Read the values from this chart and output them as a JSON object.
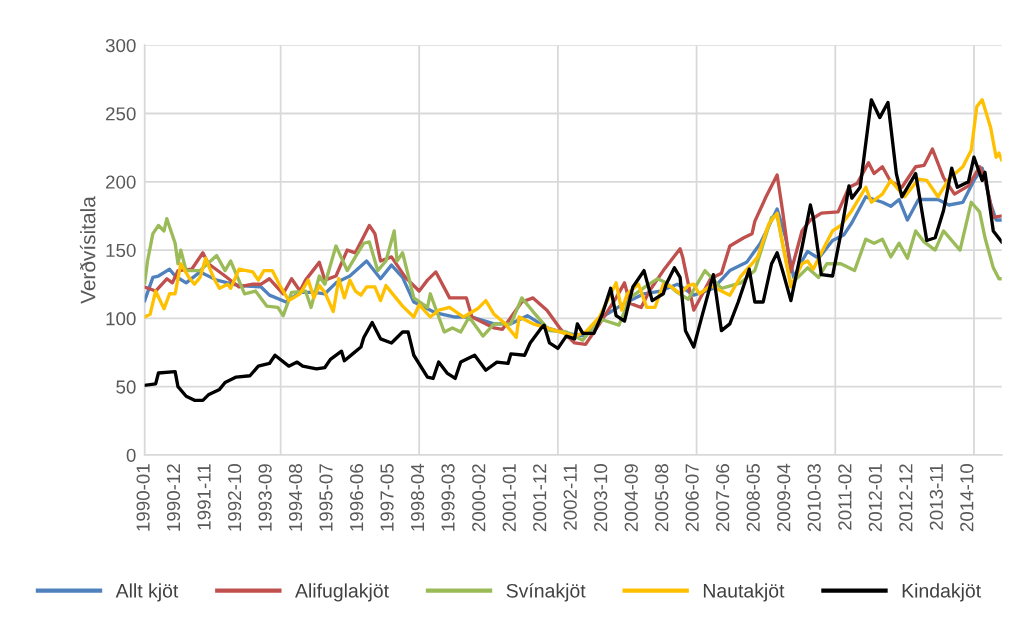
{
  "chart_data": {
    "type": "line",
    "ylabel": "Verðvísitala",
    "xlim": [
      "1990-01",
      "2015-10"
    ],
    "xticks": [
      "1990-01",
      "1990-12",
      "1991-11",
      "1992-10",
      "1993-09",
      "1994-08",
      "1995-07",
      "1996-06",
      "1997-05",
      "1998-04",
      "1999-03",
      "2000-02",
      "2001-01",
      "2001-12",
      "2002-11",
      "2003-10",
      "2004-09",
      "2005-08",
      "2006-07",
      "2007-06",
      "2008-05",
      "2009-04",
      "2010-03",
      "2011-02",
      "2012-01",
      "2012-12",
      "2013-11",
      "2014-10"
    ],
    "ylim": [
      0,
      300
    ],
    "yticks": [
      0,
      50,
      100,
      150,
      200,
      250,
      300
    ],
    "grid": "y",
    "legend": "bottom",
    "marker": "none",
    "line_style": "solid",
    "ref_lines": [
      {
        "axis": "x",
        "value": "1994-02",
        "label": null,
        "color": "#d9d9d9"
      },
      {
        "axis": "x",
        "value": "1998-04",
        "label": null,
        "color": "#d9d9d9"
      },
      {
        "axis": "x",
        "value": "2002-06",
        "label": null,
        "color": "#d9d9d9"
      },
      {
        "axis": "x",
        "value": "2006-08",
        "label": null,
        "color": "#d9d9d9"
      },
      {
        "axis": "x",
        "value": "2010-10",
        "label": null,
        "color": "#d9d9d9"
      },
      {
        "axis": "x",
        "value": "2014-12",
        "label": null,
        "color": "#d9d9d9"
      }
    ],
    "series": [
      {
        "name": "Allt kjöt",
        "color": "#4f81bd",
        "x": [
          "1990-01",
          "1990-04",
          "1990-06",
          "1990-10",
          "1990-12",
          "1991-04",
          "1991-09",
          "1992-03",
          "1992-11",
          "1993-07",
          "1993-10",
          "1994-04",
          "1994-09",
          "1995-02",
          "1995-06",
          "1995-10",
          "1996-03",
          "1996-09",
          "1997-02",
          "1997-06",
          "1997-10",
          "1998-02",
          "1998-07",
          "1998-10",
          "1999-05",
          "1999-11",
          "2000-07",
          "2001-01",
          "2001-07",
          "2002-02",
          "2002-09",
          "2003-04",
          "2003-10",
          "2004-06",
          "2005-01",
          "2005-07",
          "2006-01",
          "2006-07",
          "2007-02",
          "2007-08",
          "2008-02",
          "2008-07",
          "2009-01",
          "2009-04",
          "2009-07",
          "2009-10",
          "2009-12",
          "2010-04",
          "2010-09",
          "2011-01",
          "2011-04",
          "2011-09",
          "2012-03",
          "2012-06",
          "2012-09",
          "2012-12",
          "2013-04",
          "2013-11",
          "2014-03",
          "2014-08",
          "2014-12",
          "2015-03",
          "2015-06",
          "2015-08",
          "2015-10"
        ],
        "values": [
          113,
          130,
          131,
          136,
          131,
          126,
          134,
          128,
          124,
          123,
          117,
          112,
          119,
          119,
          118,
          126,
          131,
          142,
          129,
          139,
          130,
          112,
          107,
          104,
          101,
          101,
          96,
          96,
          102,
          93,
          89,
          87,
          101,
          111,
          118,
          120,
          125,
          117,
          122,
          135,
          141,
          155,
          180,
          160,
          130,
          142,
          149,
          144,
          157,
          161,
          170,
          189,
          185,
          182,
          187,
          172,
          187,
          187,
          183,
          185,
          201,
          210,
          184,
          172,
          172
        ]
      },
      {
        "name": "Alifuglakjöt",
        "color": "#c0504d",
        "x": [
          "1990-01",
          "1990-05",
          "1990-09",
          "1990-11",
          "1991-01",
          "1991-06",
          "1991-10",
          "1991-12",
          "1992-06",
          "1992-11",
          "1993-04",
          "1993-07",
          "1993-10",
          "1994-03",
          "1994-06",
          "1994-09",
          "1994-11",
          "1995-04",
          "1995-06",
          "1995-10",
          "1996-02",
          "1996-05",
          "1996-10",
          "1996-12",
          "1997-02",
          "1997-06",
          "1997-11",
          "1998-04",
          "1998-07",
          "1998-10",
          "1999-03",
          "1999-09",
          "1999-11",
          "2000-07",
          "2000-10",
          "2001-05",
          "2001-09",
          "2002-02",
          "2002-07",
          "2002-12",
          "2003-04",
          "2003-09",
          "2004-03",
          "2004-06",
          "2004-08",
          "2004-12",
          "2005-03",
          "2005-08",
          "2006-02",
          "2006-03",
          "2006-07",
          "2007-01",
          "2007-05",
          "2007-08",
          "2008-01",
          "2008-04",
          "2008-05",
          "2008-09",
          "2009-01",
          "2009-03",
          "2009-06",
          "2009-10",
          "2010-01",
          "2010-05",
          "2010-11",
          "2011-03",
          "2011-06",
          "2011-10",
          "2011-12",
          "2012-03",
          "2012-06",
          "2012-10",
          "2013-03",
          "2013-06",
          "2013-09",
          "2014-01",
          "2014-05",
          "2014-10",
          "2015-02",
          "2015-04",
          "2015-07",
          "2015-10"
        ],
        "values": [
          123,
          120,
          129,
          126,
          135,
          136,
          148,
          140,
          131,
          123,
          125,
          125,
          129,
          118,
          129,
          120,
          128,
          141,
          128,
          131,
          150,
          148,
          168,
          162,
          142,
          145,
          130,
          120,
          128,
          134,
          115,
          115,
          101,
          93,
          92,
          112,
          115,
          106,
          92,
          82,
          81,
          96,
          115,
          126,
          111,
          108,
          120,
          135,
          151,
          145,
          106,
          129,
          133,
          153,
          159,
          162,
          171,
          189,
          205,
          179,
          134,
          164,
          172,
          177,
          178,
          196,
          199,
          214,
          206,
          211,
          200,
          196,
          211,
          212,
          224,
          203,
          191,
          197,
          211,
          203,
          174,
          175
        ]
      },
      {
        "name": "Svínakjöt",
        "color": "#9bbb59",
        "x": [
          "1990-01",
          "1990-02",
          "1990-04",
          "1990-06",
          "1990-08",
          "1990-09",
          "1990-12",
          "1991-01",
          "1991-02",
          "1991-04",
          "1991-09",
          "1992-03",
          "1992-06",
          "1992-08",
          "1993-01",
          "1993-05",
          "1993-09",
          "1994-01",
          "1994-03",
          "1994-06",
          "1994-11",
          "1995-01",
          "1995-04",
          "1995-06",
          "1995-10",
          "1996-02",
          "1996-05",
          "1996-08",
          "1996-10",
          "1997-01",
          "1997-04",
          "1997-07",
          "1997-08",
          "1997-10",
          "1998-02",
          "1998-07",
          "1998-08",
          "1999-01",
          "1999-04",
          "1999-07",
          "1999-10",
          "2000-03",
          "2000-07",
          "2001-01",
          "2001-05",
          "2001-09",
          "2002-03",
          "2002-09",
          "2003-03",
          "2003-06",
          "2003-10",
          "2004-04",
          "2004-08",
          "2005-02",
          "2005-06",
          "2005-09",
          "2006-01",
          "2006-05",
          "2006-11",
          "2007-05",
          "2007-12",
          "2008-05",
          "2008-11",
          "2009-01",
          "2009-03",
          "2009-06",
          "2009-12",
          "2010-04",
          "2010-07",
          "2010-12",
          "2011-05",
          "2011-09",
          "2011-12",
          "2012-03",
          "2012-06",
          "2012-09",
          "2012-12",
          "2013-03",
          "2013-06",
          "2013-10",
          "2014-01",
          "2014-07",
          "2014-11",
          "2015-02",
          "2015-04",
          "2015-07",
          "2015-09",
          "2015-10"
        ],
        "values": [
          126,
          142,
          162,
          168,
          164,
          173,
          155,
          140,
          150,
          135,
          135,
          146,
          135,
          142,
          118,
          120,
          109,
          108,
          102,
          119,
          120,
          108,
          131,
          125,
          153,
          135,
          145,
          155,
          156,
          135,
          142,
          164,
          142,
          148,
          115,
          108,
          118,
          90,
          93,
          90,
          101,
          87,
          96,
          96,
          115,
          105,
          91,
          90,
          84,
          92,
          99,
          95,
          115,
          124,
          129,
          126,
          119,
          114,
          135,
          122,
          126,
          135,
          174,
          175,
          155,
          125,
          137,
          130,
          140,
          140,
          135,
          158,
          155,
          158,
          145,
          155,
          144,
          164,
          156,
          150,
          164,
          150,
          185,
          178,
          159,
          137,
          129,
          129
        ]
      },
      {
        "name": "Nautakjöt",
        "color": "#ffc000",
        "x": [
          "1990-01",
          "1990-03",
          "1990-05",
          "1990-08",
          "1990-10",
          "1990-12",
          "1991-02",
          "1991-05",
          "1991-07",
          "1991-09",
          "1991-11",
          "1992-02",
          "1992-04",
          "1992-07",
          "1992-08",
          "1992-11",
          "1993-04",
          "1993-06",
          "1993-08",
          "1993-11",
          "1994-02",
          "1994-05",
          "1994-09",
          "1994-12",
          "1995-02",
          "1995-04",
          "1995-06",
          "1995-09",
          "1995-11",
          "1996-01",
          "1996-03",
          "1996-05",
          "1996-07",
          "1996-09",
          "1996-12",
          "1997-02",
          "1997-04",
          "1997-10",
          "1998-02",
          "1998-04",
          "1998-08",
          "1998-11",
          "1999-03",
          "1999-08",
          "2000-01",
          "2000-04",
          "2000-07",
          "2000-11",
          "2001-03",
          "2001-04",
          "2001-09",
          "2002-02",
          "2002-07",
          "2002-12",
          "2003-04",
          "2003-09",
          "2004-03",
          "2004-05",
          "2004-07",
          "2004-11",
          "2005-02",
          "2005-05",
          "2005-08",
          "2005-11",
          "2006-02",
          "2006-05",
          "2006-07",
          "2006-09",
          "2007-01",
          "2007-08",
          "2007-12",
          "2008-04",
          "2008-06",
          "2008-10",
          "2009-01",
          "2009-03",
          "2009-06",
          "2009-10",
          "2009-12",
          "2010-02",
          "2010-05",
          "2010-09",
          "2010-12",
          "2011-04",
          "2011-09",
          "2011-11",
          "2012-03",
          "2012-06",
          "2012-11",
          "2013-04",
          "2013-07",
          "2013-11",
          "2014-03",
          "2014-08",
          "2014-11",
          "2015-01",
          "2015-03",
          "2015-06",
          "2015-08",
          "2015-09",
          "2015-10"
        ],
        "values": [
          101,
          103,
          120,
          107,
          118,
          118,
          140,
          130,
          125,
          130,
          144,
          129,
          122,
          125,
          122,
          136,
          134,
          128,
          135,
          135,
          123,
          113,
          118,
          128,
          115,
          124,
          119,
          105,
          129,
          115,
          128,
          120,
          117,
          123,
          123,
          113,
          124,
          109,
          101,
          110,
          101,
          106,
          108,
          101,
          107,
          113,
          103,
          96,
          86,
          101,
          96,
          93,
          90,
          87,
          90,
          101,
          126,
          106,
          118,
          125,
          108,
          108,
          125,
          123,
          118,
          124,
          125,
          118,
          124,
          117,
          131,
          140,
          145,
          169,
          177,
          155,
          123,
          140,
          142,
          136,
          148,
          164,
          168,
          179,
          196,
          185,
          191,
          201,
          189,
          202,
          201,
          189,
          202,
          211,
          223,
          255,
          260,
          240,
          218,
          221,
          216
        ]
      },
      {
        "name": "Kindakjöt",
        "color": "#000000",
        "x": [
          "1990-01",
          "1990-05",
          "1990-06",
          "1990-12",
          "1991-01",
          "1991-04",
          "1991-07",
          "1991-10",
          "1991-12",
          "1992-04",
          "1992-06",
          "1992-10",
          "1993-03",
          "1993-06",
          "1993-10",
          "1993-12",
          "1994-05",
          "1994-08",
          "1994-10",
          "1995-03",
          "1995-06",
          "1995-08",
          "1995-12",
          "1996-01",
          "1996-04",
          "1996-07",
          "1996-08",
          "1996-11",
          "1997-02",
          "1997-06",
          "1997-10",
          "1997-12",
          "1998-02",
          "1998-07",
          "1998-09",
          "1998-11",
          "1999-02",
          "1999-05",
          "1999-07",
          "1999-12",
          "2000-04",
          "2000-08",
          "2000-12",
          "2001-01",
          "2001-06",
          "2001-08",
          "2001-12",
          "2002-01",
          "2002-03",
          "2002-06",
          "2002-09",
          "2002-12",
          "2003-01",
          "2003-03",
          "2003-07",
          "2003-10",
          "2004-01",
          "2004-03",
          "2004-06",
          "2004-09",
          "2005-01",
          "2005-04",
          "2005-08",
          "2005-09",
          "2005-12",
          "2006-02",
          "2006-04",
          "2006-07",
          "2006-10",
          "2007-02",
          "2007-05",
          "2007-08",
          "2007-11",
          "2008-03",
          "2008-05",
          "2008-08",
          "2008-11",
          "2009-01",
          "2009-03",
          "2009-06",
          "2009-10",
          "2010-01",
          "2010-02",
          "2010-05",
          "2010-09",
          "2010-12",
          "2011-03",
          "2011-04",
          "2011-07",
          "2011-11",
          "2012-02",
          "2012-05",
          "2012-08",
          "2012-10",
          "2013-03",
          "2013-07",
          "2013-10",
          "2014-01",
          "2014-04",
          "2014-06",
          "2014-10",
          "2014-12",
          "2015-03",
          "2015-04",
          "2015-07",
          "2015-10"
        ],
        "values": [
          51,
          52,
          60,
          61,
          50,
          43,
          40,
          40,
          44,
          48,
          53,
          57,
          58,
          65,
          67,
          73,
          65,
          68,
          65,
          63,
          64,
          70,
          76,
          69,
          74,
          79,
          86,
          97,
          85,
          82,
          90,
          90,
          73,
          57,
          56,
          68,
          60,
          56,
          68,
          73,
          62,
          68,
          67,
          74,
          73,
          82,
          93,
          95,
          82,
          78,
          87,
          85,
          96,
          89,
          89,
          103,
          122,
          102,
          98,
          123,
          135,
          113,
          118,
          125,
          137,
          130,
          91,
          79,
          102,
          132,
          91,
          96,
          112,
          136,
          112,
          112,
          140,
          148,
          135,
          113,
          152,
          183,
          174,
          132,
          131,
          162,
          197,
          188,
          196,
          260,
          247,
          258,
          206,
          189,
          206,
          157,
          159,
          179,
          210,
          196,
          200,
          218,
          201,
          207,
          164,
          156
        ]
      }
    ]
  }
}
